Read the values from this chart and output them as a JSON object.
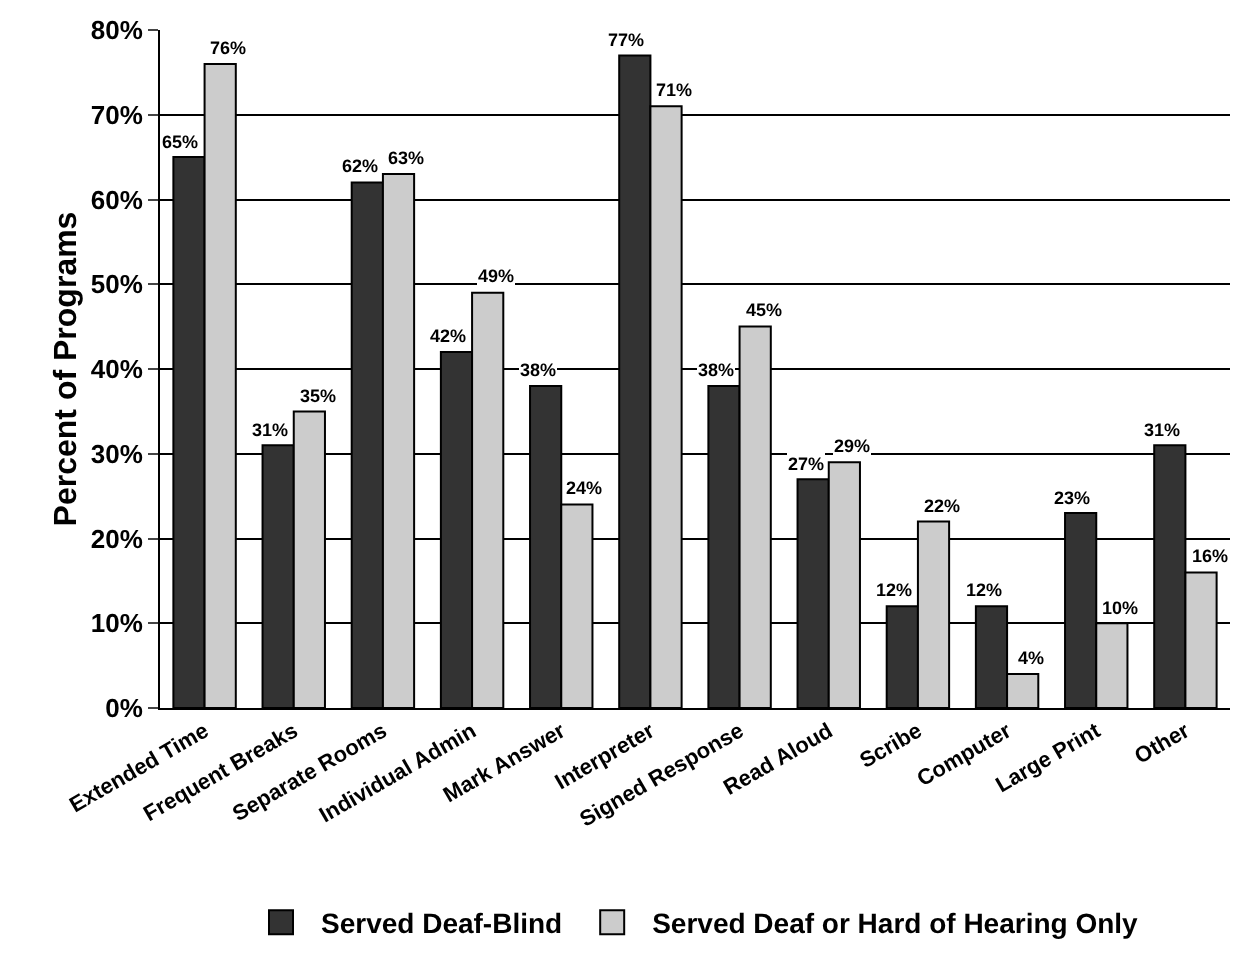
{
  "chart_data": {
    "type": "bar",
    "ylabel": "Percent of Programs",
    "categories": [
      "Extended Time",
      "Frequent Breaks",
      "Separate Rooms",
      "Individual Admin",
      "Mark Answer",
      "Interpreter",
      "Signed Response",
      "Read Aloud",
      "Scribe",
      "Computer",
      "Large Print",
      "Other"
    ],
    "series": [
      {
        "name": "Served Deaf-Blind",
        "color": "#333333",
        "values": [
          65,
          31,
          62,
          42,
          38,
          77,
          38,
          27,
          12,
          12,
          23,
          31
        ],
        "value_labels": [
          "65%",
          "31%",
          "62%",
          "42%",
          "38%",
          "77%",
          "38%",
          "27%",
          "12%",
          "12%",
          "23%",
          "31%"
        ]
      },
      {
        "name": "Served Deaf or Hard of Hearing Only",
        "color": "#cccccc",
        "values": [
          76,
          35,
          63,
          49,
          24,
          71,
          45,
          29,
          22,
          4,
          10,
          16
        ],
        "value_labels": [
          "76%",
          "35%",
          "63%",
          "49%",
          "24%",
          "71%",
          "45%",
          "29%",
          "22%",
          "4%",
          "10%",
          "16%"
        ]
      }
    ],
    "ylim": [
      0,
      80
    ],
    "yticks": [
      {
        "value": 0,
        "label": "0%"
      },
      {
        "value": 10,
        "label": "10%"
      },
      {
        "value": 20,
        "label": "20%"
      },
      {
        "value": 30,
        "label": "30%"
      },
      {
        "value": 40,
        "label": "40%"
      },
      {
        "value": 50,
        "label": "50%"
      },
      {
        "value": 60,
        "label": "60%"
      },
      {
        "value": 70,
        "label": "70%"
      },
      {
        "value": 80,
        "label": "80%"
      }
    ],
    "grid": "y",
    "legend": "bottom"
  }
}
